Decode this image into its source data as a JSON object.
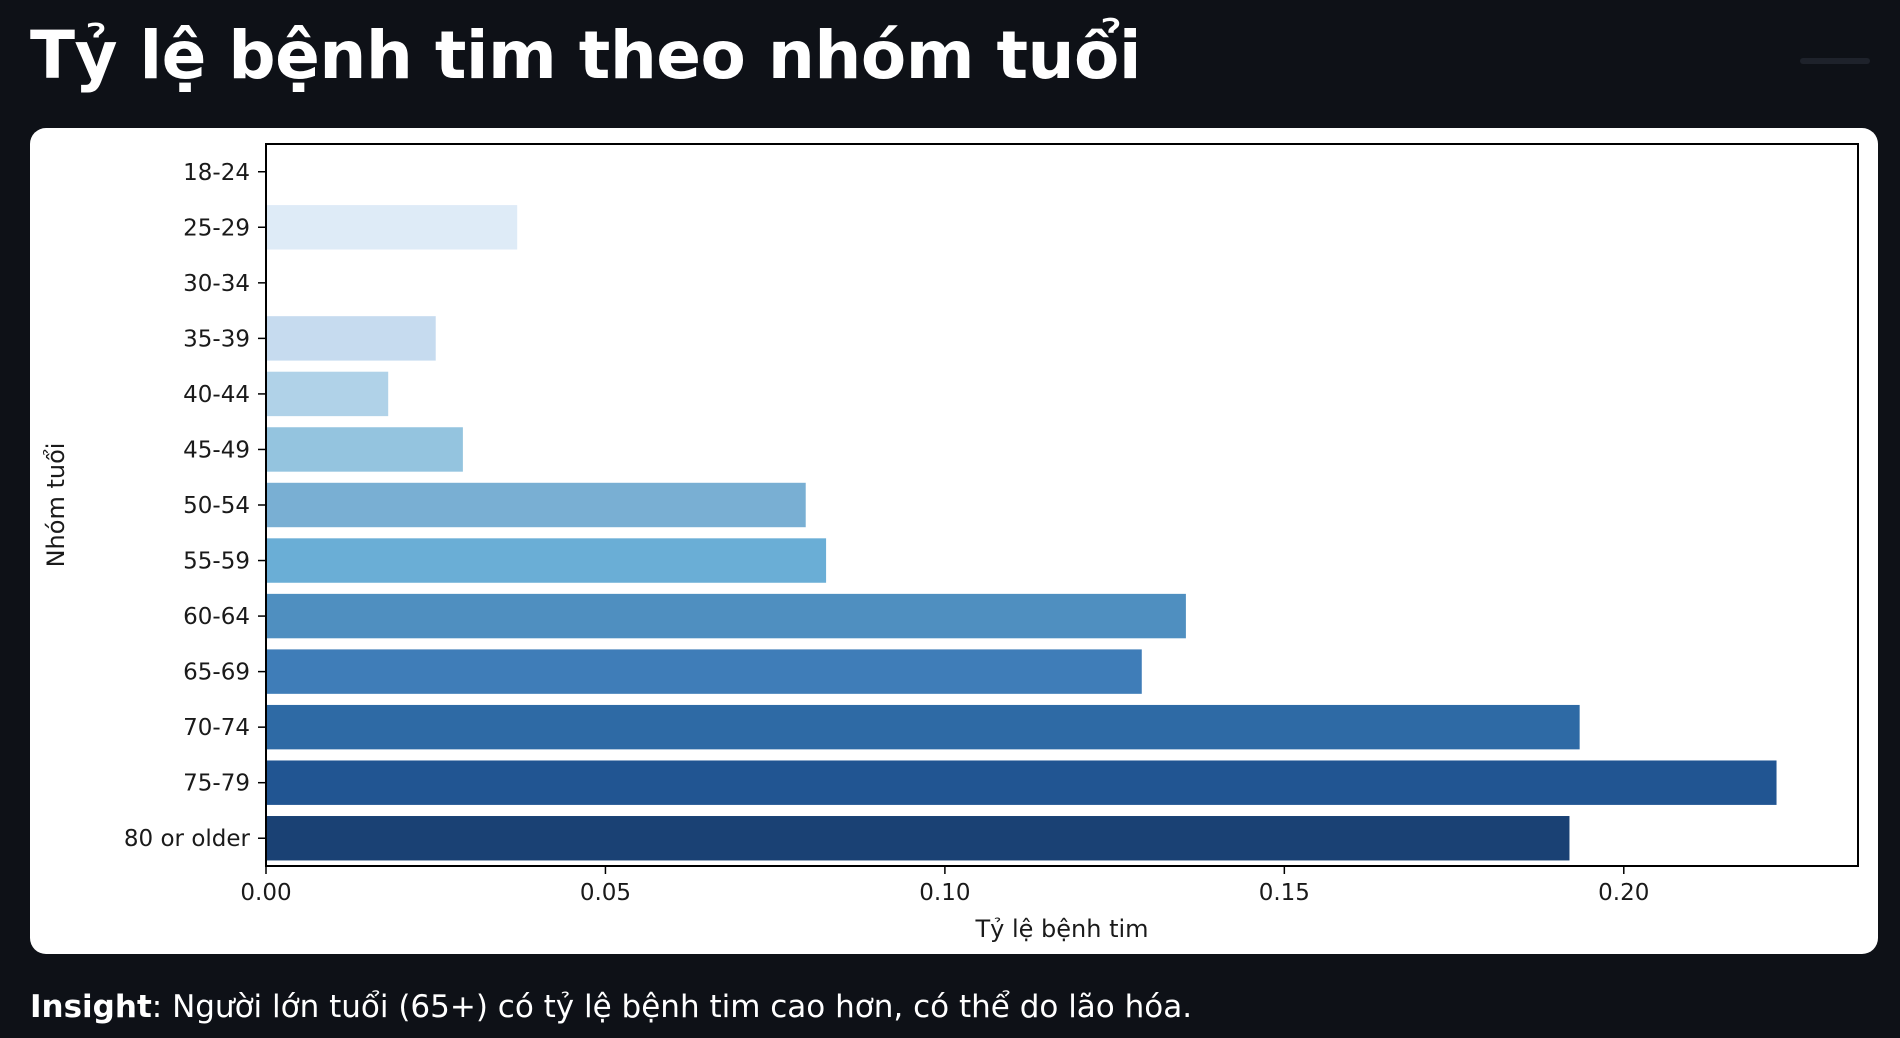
{
  "page": {
    "title": "Tỷ lệ bệnh tim theo nhóm tuổi"
  },
  "insight": {
    "label": "Insight",
    "text": ": Người lớn tuổi (65+) có tỷ lệ bệnh tim cao hơn, có thể do lão hóa."
  },
  "chart_data": {
    "type": "bar",
    "orientation": "horizontal",
    "title": "",
    "xlabel": "Tỷ lệ bệnh tim",
    "ylabel": "Nhóm tuổi",
    "categories": [
      "18-24",
      "25-29",
      "30-34",
      "35-39",
      "40-44",
      "45-49",
      "50-54",
      "55-59",
      "60-64",
      "65-69",
      "70-74",
      "75-79",
      "80 or older"
    ],
    "values": [
      0.0,
      0.037,
      0.0,
      0.025,
      0.018,
      0.029,
      0.0795,
      0.0825,
      0.1355,
      0.129,
      0.1935,
      0.2225,
      0.192
    ],
    "colors": [
      "#f7fbff",
      "#deebf7",
      "#d0e1f2",
      "#c6dbef",
      "#b0d2e8",
      "#94c4df",
      "#79afd3",
      "#6aaed6",
      "#4f8fc0",
      "#3f7db8",
      "#2e6aa5",
      "#215592",
      "#1a4174"
    ],
    "xlim": [
      0.0,
      0.2345
    ],
    "xticks": [
      {
        "value": 0.0,
        "label": "0.00"
      },
      {
        "value": 0.05,
        "label": "0.05"
      },
      {
        "value": 0.1,
        "label": "0.10"
      },
      {
        "value": 0.15,
        "label": "0.15"
      },
      {
        "value": 0.2,
        "label": "0.20"
      }
    ],
    "grid": false,
    "legend": "none",
    "colormap": "Blues"
  }
}
